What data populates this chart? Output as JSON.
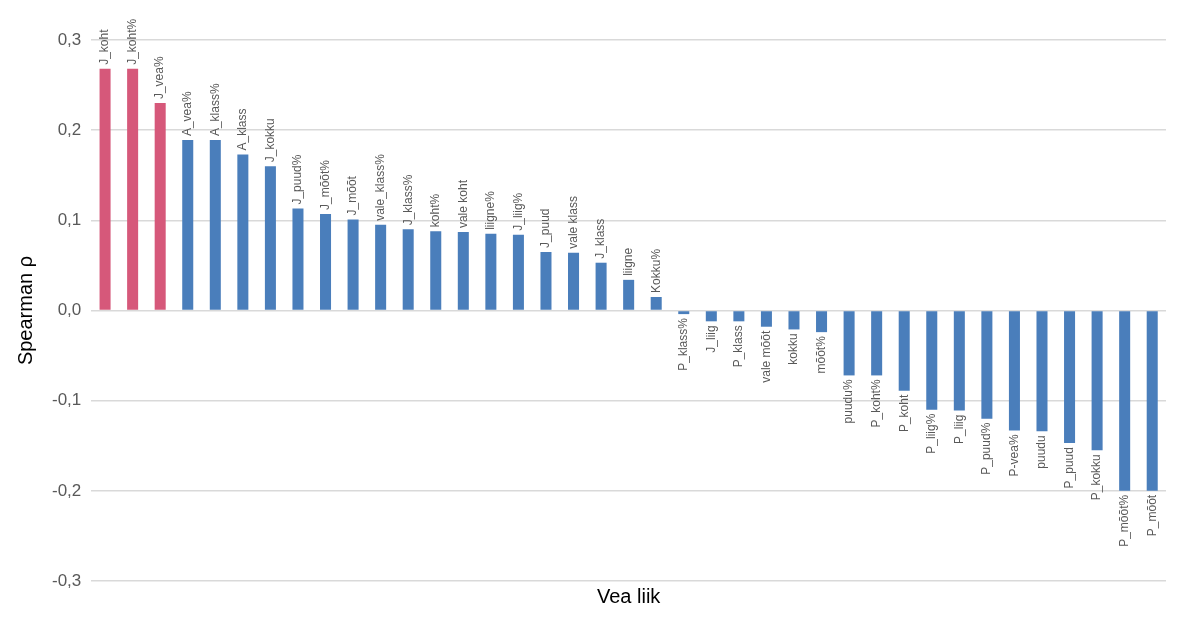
{
  "chart_data": {
    "type": "bar",
    "xlabel": "Vea liik",
    "ylabel": "Spearman ρ",
    "categories": [
      "J_koht",
      "J_koht%",
      "J_vea%",
      "A_vea%",
      "A_klass%",
      "A_klass",
      "J_kokku",
      "J_puud%",
      "J_mõõt%",
      "J_mõõt",
      "vale_klass%",
      "J_klass%",
      "koht%",
      "vale koht",
      "liigne%",
      "J_liig%",
      "J_puud",
      "vale klass",
      "J_klass",
      "liigne",
      "Kokku%",
      "P_klass%",
      "J_liig",
      "P_klass",
      "vale mõõt",
      "kokku",
      "mõõt%",
      "puudu%",
      "P_koht%",
      "P_koht",
      "P_liig%",
      "P_liig",
      "P_puud%",
      "P-vea%",
      "puudu",
      "P_puud",
      "P_kokku",
      "P_mõõt%",
      "P_mõõt"
    ],
    "values": [
      0.268,
      0.268,
      0.23,
      0.189,
      0.189,
      0.173,
      0.16,
      0.113,
      0.107,
      0.101,
      0.095,
      0.09,
      0.088,
      0.087,
      0.085,
      0.084,
      0.065,
      0.064,
      0.053,
      0.034,
      0.015,
      -0.004,
      -0.012,
      -0.012,
      -0.018,
      -0.021,
      -0.024,
      -0.072,
      -0.072,
      -0.089,
      -0.11,
      -0.111,
      -0.12,
      -0.133,
      -0.134,
      -0.147,
      -0.155,
      -0.2,
      -0.2
    ],
    "colors": [
      "#d6587a",
      "#d6587a",
      "#d6587a",
      "#4a7ebb",
      "#4a7ebb",
      "#4a7ebb",
      "#4a7ebb",
      "#4a7ebb",
      "#4a7ebb",
      "#4a7ebb",
      "#4a7ebb",
      "#4a7ebb",
      "#4a7ebb",
      "#4a7ebb",
      "#4a7ebb",
      "#4a7ebb",
      "#4a7ebb",
      "#4a7ebb",
      "#4a7ebb",
      "#4a7ebb",
      "#4a7ebb",
      "#4a7ebb",
      "#4a7ebb",
      "#4a7ebb",
      "#4a7ebb",
      "#4a7ebb",
      "#4a7ebb",
      "#4a7ebb",
      "#4a7ebb",
      "#4a7ebb",
      "#4a7ebb",
      "#4a7ebb",
      "#4a7ebb",
      "#4a7ebb",
      "#4a7ebb",
      "#4a7ebb",
      "#4a7ebb",
      "#4a7ebb",
      "#4a7ebb"
    ],
    "ylim": [
      -0.3,
      0.3
    ],
    "yticks": [
      {
        "value": -0.3,
        "label": "-0,3"
      },
      {
        "value": -0.2,
        "label": "-0,2"
      },
      {
        "value": -0.1,
        "label": "-0,1"
      },
      {
        "value": 0,
        "label": "0,0"
      },
      {
        "value": 0.1,
        "label": "0,1"
      },
      {
        "value": 0.2,
        "label": "0,2"
      },
      {
        "value": 0.3,
        "label": "0,3"
      }
    ],
    "grid": "y",
    "legend": false,
    "tick_labels": "y"
  }
}
